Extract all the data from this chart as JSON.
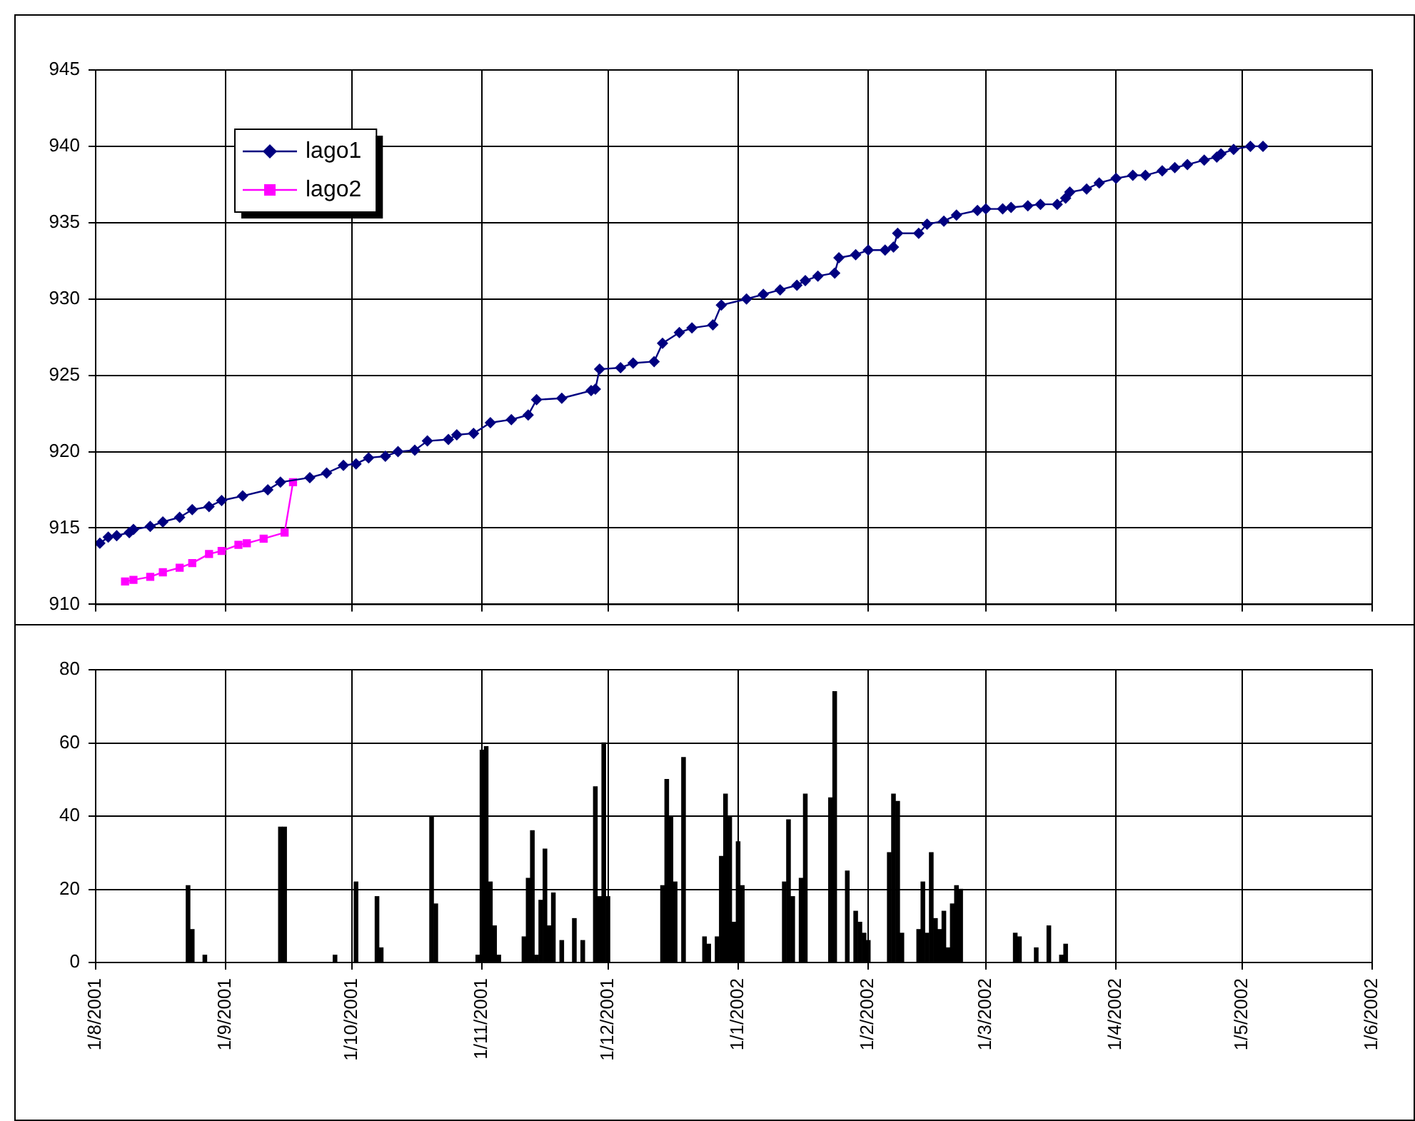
{
  "chart_data": [
    {
      "type": "line",
      "series": [
        {
          "name": "lago1",
          "color": "#000080",
          "marker": "diamond",
          "x": [
            "2001-08-02",
            "2001-08-04",
            "2001-08-06",
            "2001-08-09",
            "2001-08-10",
            "2001-08-14",
            "2001-08-17",
            "2001-08-21",
            "2001-08-24",
            "2001-08-28",
            "2001-08-31",
            "2001-09-05",
            "2001-09-11",
            "2001-09-14",
            "2001-09-21",
            "2001-09-25",
            "2001-09-29",
            "2001-10-02",
            "2001-10-05",
            "2001-10-09",
            "2001-10-12",
            "2001-10-16",
            "2001-10-19",
            "2001-10-24",
            "2001-10-26",
            "2001-10-30",
            "2001-11-03",
            "2001-11-08",
            "2001-11-12",
            "2001-11-14",
            "2001-11-20",
            "2001-11-27",
            "2001-11-28",
            "2001-11-29",
            "2001-12-04",
            "2001-12-07",
            "2001-12-12",
            "2001-12-14",
            "2001-12-18",
            "2001-12-21",
            "2001-12-26",
            "2001-12-28",
            "2002-01-03",
            "2002-01-07",
            "2002-01-11",
            "2002-01-15",
            "2002-01-17",
            "2002-01-20",
            "2002-01-24",
            "2002-01-25",
            "2002-01-29",
            "2002-02-01",
            "2002-02-05",
            "2002-02-07",
            "2002-02-08",
            "2002-02-13",
            "2002-02-15",
            "2002-02-19",
            "2002-02-22",
            "2002-02-27",
            "2002-03-01",
            "2002-03-05",
            "2002-03-07",
            "2002-03-11",
            "2002-03-14",
            "2002-03-18",
            "2002-03-20",
            "2002-03-21",
            "2002-03-25",
            "2002-03-28",
            "2002-04-01",
            "2002-04-05",
            "2002-04-08",
            "2002-04-12",
            "2002-04-15",
            "2002-04-18",
            "2002-04-22",
            "2002-04-25",
            "2002-04-26",
            "2002-04-29",
            "2002-05-03",
            "2002-05-06"
          ],
          "values": [
            914.0,
            914.4,
            914.5,
            914.7,
            914.9,
            915.1,
            915.4,
            915.7,
            916.2,
            916.4,
            916.8,
            917.1,
            917.5,
            918.0,
            918.3,
            918.6,
            919.1,
            919.2,
            919.6,
            919.7,
            920.0,
            920.1,
            920.7,
            920.8,
            921.1,
            921.2,
            921.9,
            922.1,
            922.4,
            923.4,
            923.5,
            924.0,
            924.1,
            925.4,
            925.5,
            925.8,
            925.9,
            927.1,
            927.8,
            928.1,
            928.3,
            929.6,
            930.0,
            930.3,
            930.6,
            930.9,
            931.2,
            931.5,
            931.7,
            932.7,
            932.9,
            933.2,
            933.2,
            933.4,
            934.3,
            934.3,
            934.9,
            935.1,
            935.5,
            935.8,
            935.9,
            935.9,
            936.0,
            936.1,
            936.2,
            936.2,
            936.6,
            937.0,
            937.2,
            937.6,
            937.9,
            938.1,
            938.1,
            938.4,
            938.6,
            938.8,
            939.1,
            939.3,
            939.5,
            939.8,
            940.0,
            940.0
          ]
        },
        {
          "name": "lago2",
          "color": "#ff00ff",
          "marker": "square",
          "x": [
            "2001-08-08",
            "2001-08-10",
            "2001-08-14",
            "2001-08-17",
            "2001-08-21",
            "2001-08-24",
            "2001-08-28",
            "2001-08-31",
            "2001-09-04",
            "2001-09-06",
            "2001-09-10",
            "2001-09-15",
            "2001-09-17"
          ],
          "values": [
            911.5,
            911.6,
            911.8,
            912.1,
            912.4,
            912.7,
            913.3,
            913.5,
            913.9,
            914.0,
            914.3,
            914.7,
            918.0
          ]
        }
      ],
      "xlim": [
        "2001-08-01",
        "2002-06-01"
      ],
      "xticks": [
        {
          "value": "2001-08-01",
          "label": null
        },
        {
          "value": "2001-09-01",
          "label": null
        },
        {
          "value": "2001-10-01",
          "label": null
        },
        {
          "value": "2001-11-01",
          "label": null
        },
        {
          "value": "2001-12-01",
          "label": null
        },
        {
          "value": "2002-01-01",
          "label": null
        },
        {
          "value": "2002-02-01",
          "label": null
        },
        {
          "value": "2002-03-01",
          "label": null
        },
        {
          "value": "2002-04-01",
          "label": null
        },
        {
          "value": "2002-05-01",
          "label": null
        },
        {
          "value": "2002-06-01",
          "label": null
        }
      ],
      "ylim": [
        910,
        945
      ],
      "yticks": [
        910,
        915,
        920,
        925,
        930,
        935,
        940,
        945
      ],
      "grid": true,
      "legend": "top left",
      "tick_labels": "y"
    },
    {
      "type": "bar",
      "color": "#000000",
      "x": [
        "2001-08-23",
        "2001-08-24",
        "2001-08-27",
        "2001-09-14",
        "2001-09-15",
        "2001-09-27",
        "2001-10-02",
        "2001-10-07",
        "2001-10-08",
        "2001-10-20",
        "2001-10-21",
        "2001-10-31",
        "2001-11-01",
        "2001-11-02",
        "2001-11-03",
        "2001-11-04",
        "2001-11-05",
        "2001-11-11",
        "2001-11-12",
        "2001-11-13",
        "2001-11-14",
        "2001-11-15",
        "2001-11-16",
        "2001-11-17",
        "2001-11-18",
        "2001-11-20",
        "2001-11-23",
        "2001-11-25",
        "2001-11-28",
        "2001-11-29",
        "2001-11-30",
        "2001-12-01",
        "2001-12-14",
        "2001-12-15",
        "2001-12-16",
        "2001-12-17",
        "2001-12-19",
        "2001-12-24",
        "2001-12-25",
        "2001-12-27",
        "2001-12-28",
        "2001-12-29",
        "2001-12-30",
        "2001-12-31",
        "2002-01-01",
        "2002-01-02",
        "2002-01-12",
        "2002-01-13",
        "2002-01-14",
        "2002-01-16",
        "2002-01-17",
        "2002-01-23",
        "2002-01-24",
        "2002-01-27",
        "2002-01-29",
        "2002-01-30",
        "2002-01-31",
        "2002-02-01",
        "2002-02-06",
        "2002-02-07",
        "2002-02-08",
        "2002-02-09",
        "2002-02-13",
        "2002-02-14",
        "2002-02-15",
        "2002-02-16",
        "2002-02-17",
        "2002-02-18",
        "2002-02-19",
        "2002-02-20",
        "2002-02-21",
        "2002-02-22",
        "2002-02-23",
        "2002-03-08",
        "2002-03-09",
        "2002-03-13",
        "2002-03-16",
        "2002-03-19",
        "2002-03-20"
      ],
      "values": [
        21,
        9,
        2,
        37,
        37,
        2,
        22,
        18,
        4,
        40,
        16,
        2,
        58,
        59,
        22,
        10,
        2,
        7,
        23,
        36,
        2,
        17,
        31,
        10,
        19,
        6,
        12,
        6,
        48,
        18,
        60,
        18,
        21,
        50,
        40,
        22,
        56,
        7,
        5,
        7,
        29,
        46,
        40,
        11,
        33,
        21,
        22,
        39,
        18,
        23,
        46,
        45,
        74,
        25,
        14,
        11,
        8,
        6,
        30,
        46,
        44,
        8,
        9,
        22,
        8,
        30,
        12,
        9,
        14,
        4,
        16,
        21,
        20,
        8,
        7,
        4,
        10,
        2,
        5
      ],
      "xlim": [
        "2001-08-01",
        "2002-06-01"
      ],
      "xticks": [
        {
          "value": "2001-08-01",
          "label": "1/8/2001"
        },
        {
          "value": "2001-09-01",
          "label": "1/9/2001"
        },
        {
          "value": "2001-10-01",
          "label": "1/10/2001"
        },
        {
          "value": "2001-11-01",
          "label": "1/11/2001"
        },
        {
          "value": "2001-12-01",
          "label": "1/12/2001"
        },
        {
          "value": "2002-01-01",
          "label": "1/1/2002"
        },
        {
          "value": "2002-02-01",
          "label": "1/2/2002"
        },
        {
          "value": "2002-03-01",
          "label": "1/3/2002"
        },
        {
          "value": "2002-04-01",
          "label": "1/4/2002"
        },
        {
          "value": "2002-05-01",
          "label": "1/5/2002"
        },
        {
          "value": "2002-06-01",
          "label": "1/6/2002"
        }
      ],
      "ylim": [
        0,
        80
      ],
      "yticks": [
        0,
        20,
        40,
        60,
        80
      ],
      "grid": true
    }
  ]
}
